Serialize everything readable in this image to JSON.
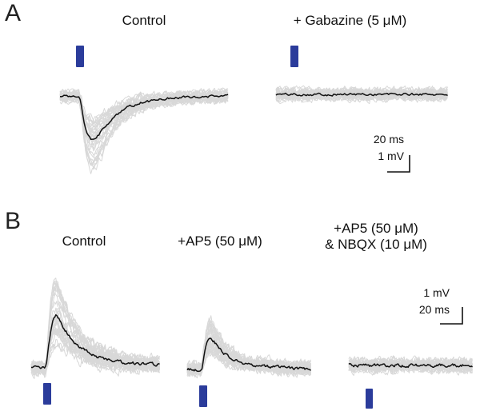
{
  "figure": {
    "panel_a": {
      "label": "A",
      "col1_title": "Control",
      "col2_title": "+ Gabazine (5 μM)",
      "scalebar": {
        "time_label": "20 ms",
        "voltage_label": "1 mV"
      }
    },
    "panel_b": {
      "label": "B",
      "col1_title": "Control",
      "col2_title": "+AP5 (50 μM)",
      "col3_title_line1": "+AP5 (50 μM)",
      "col3_title_line2": "& NBQX (10 μM)",
      "scalebar": {
        "voltage_label": "1 mV",
        "time_label": "20 ms"
      }
    },
    "colors": {
      "stimulus_blue": "#2b3c9b",
      "sweep_gray": "#d8d8d8",
      "mean_black": "#111111",
      "scalebar_black": "#111111"
    }
  },
  "chart_data": [
    {
      "type": "line",
      "panel": "A",
      "title": "Control",
      "x_unit": "ms",
      "y_unit": "mV",
      "x_range_ms": [
        0,
        150
      ],
      "stimulus_time_ms": 18,
      "peak_mv": -2.6,
      "n_sweeps": 32,
      "noise_mv": 0.22,
      "amp_jitter": [
        0.5,
        1.7
      ],
      "seed": 1,
      "grid": false,
      "legend": false,
      "mean_points": [
        [
          0,
          0
        ],
        [
          8,
          0
        ],
        [
          14,
          0
        ],
        [
          17,
          0
        ],
        [
          19,
          -0.5
        ],
        [
          21,
          -1.4
        ],
        [
          24,
          -2.2
        ],
        [
          27,
          -2.55
        ],
        [
          30,
          -2.6
        ],
        [
          34,
          -2.35
        ],
        [
          39,
          -1.95
        ],
        [
          45,
          -1.5
        ],
        [
          52,
          -1.05
        ],
        [
          60,
          -0.7
        ],
        [
          70,
          -0.45
        ],
        [
          82,
          -0.28
        ],
        [
          95,
          -0.15
        ],
        [
          110,
          -0.08
        ],
        [
          130,
          -0.03
        ],
        [
          150,
          0
        ]
      ]
    },
    {
      "type": "line",
      "panel": "A",
      "title": "+ Gabazine (5 μM)",
      "x_unit": "ms",
      "y_unit": "mV",
      "x_range_ms": [
        0,
        150
      ],
      "stimulus_time_ms": 18,
      "peak_mv": 0,
      "n_sweeps": 30,
      "noise_mv": 0.22,
      "amp_jitter": [
        0.5,
        1.7
      ],
      "seed": 2,
      "grid": false,
      "legend": false,
      "mean_points": [
        [
          0,
          0
        ],
        [
          150,
          0
        ]
      ]
    },
    {
      "type": "line",
      "panel": "B",
      "title": "Control",
      "x_unit": "ms",
      "y_unit": "mV",
      "x_range_ms": [
        0,
        150
      ],
      "stimulus_time_ms": 18,
      "peak_mv": 2.6,
      "n_sweeps": 32,
      "noise_mv": 0.22,
      "amp_jitter": [
        0.5,
        1.7
      ],
      "seed": 3,
      "grid": false,
      "legend": false,
      "mean_points": [
        [
          0,
          0
        ],
        [
          8,
          0
        ],
        [
          14,
          0
        ],
        [
          16,
          -0.1
        ],
        [
          18,
          0.2
        ],
        [
          20,
          1.0
        ],
        [
          23,
          1.9
        ],
        [
          26,
          2.45
        ],
        [
          29,
          2.6
        ],
        [
          33,
          2.4
        ],
        [
          38,
          2.0
        ],
        [
          44,
          1.6
        ],
        [
          51,
          1.25
        ],
        [
          59,
          0.95
        ],
        [
          68,
          0.72
        ],
        [
          78,
          0.55
        ],
        [
          90,
          0.42
        ],
        [
          105,
          0.3
        ],
        [
          120,
          0.22
        ],
        [
          135,
          0.18
        ],
        [
          150,
          0.15
        ]
      ]
    },
    {
      "type": "line",
      "panel": "B",
      "title": "+AP5 (50 μM)",
      "x_unit": "ms",
      "y_unit": "mV",
      "x_range_ms": [
        0,
        150
      ],
      "stimulus_time_ms": 18,
      "peak_mv": 1.55,
      "n_sweeps": 30,
      "noise_mv": 0.22,
      "amp_jitter": [
        0.5,
        1.6
      ],
      "seed": 4,
      "grid": false,
      "legend": false,
      "mean_points": [
        [
          0,
          0
        ],
        [
          8,
          0
        ],
        [
          14,
          0
        ],
        [
          16,
          -0.05
        ],
        [
          18,
          0.1
        ],
        [
          20,
          0.6
        ],
        [
          23,
          1.2
        ],
        [
          26,
          1.5
        ],
        [
          29,
          1.55
        ],
        [
          33,
          1.38
        ],
        [
          38,
          1.12
        ],
        [
          44,
          0.85
        ],
        [
          51,
          0.62
        ],
        [
          59,
          0.45
        ],
        [
          68,
          0.33
        ],
        [
          78,
          0.24
        ],
        [
          90,
          0.17
        ],
        [
          105,
          0.12
        ],
        [
          120,
          0.08
        ],
        [
          135,
          0.05
        ],
        [
          150,
          0.04
        ]
      ]
    },
    {
      "type": "line",
      "panel": "B",
      "title": "+AP5 (50 μM) & NBQX (10 μM)",
      "x_unit": "ms",
      "y_unit": "mV",
      "x_range_ms": [
        0,
        150
      ],
      "stimulus_time_ms": 18,
      "peak_mv": 0,
      "n_sweeps": 30,
      "noise_mv": 0.2,
      "amp_jitter": [
        0.5,
        1.5
      ],
      "seed": 5,
      "grid": false,
      "legend": false,
      "mean_points": [
        [
          0,
          0
        ],
        [
          150,
          0
        ]
      ]
    }
  ]
}
